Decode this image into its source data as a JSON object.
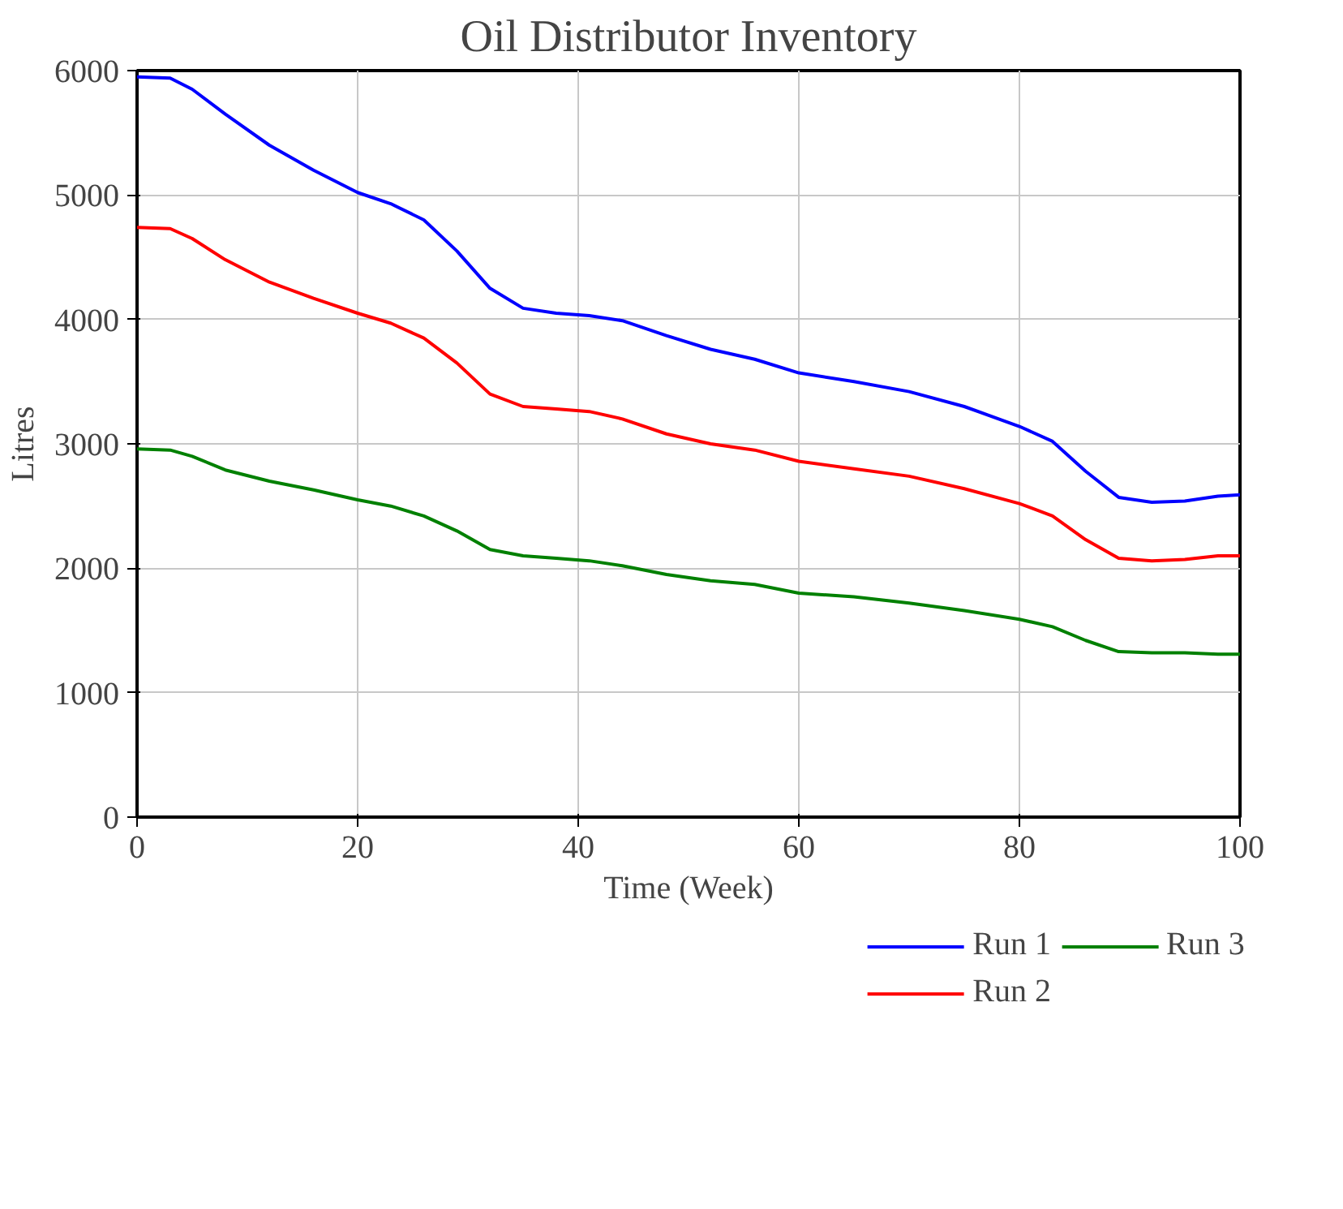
{
  "chart_data": {
    "type": "line",
    "title": "Oil Distributor Inventory",
    "xlabel": "Time (Week)",
    "ylabel": "Litres",
    "x": [
      0,
      3,
      5,
      8,
      12,
      16,
      20,
      23,
      26,
      29,
      32,
      35,
      38,
      41,
      44,
      48,
      52,
      56,
      60,
      65,
      70,
      75,
      80,
      83,
      86,
      89,
      92,
      95,
      98,
      100
    ],
    "series": [
      {
        "name": "Run 1",
        "color": "#0000ff",
        "values": [
          5950,
          5940,
          5850,
          5650,
          5400,
          5200,
          5020,
          4930,
          4800,
          4550,
          4250,
          4090,
          4050,
          4030,
          3990,
          3870,
          3760,
          3680,
          3570,
          3500,
          3420,
          3300,
          3140,
          3020,
          2780,
          2570,
          2530,
          2540,
          2580,
          2590
        ]
      },
      {
        "name": "Run 2",
        "color": "#ff0000",
        "values": [
          4740,
          4730,
          4650,
          4480,
          4300,
          4170,
          4050,
          3970,
          3850,
          3650,
          3400,
          3300,
          3280,
          3260,
          3200,
          3080,
          3000,
          2950,
          2860,
          2800,
          2740,
          2640,
          2520,
          2420,
          2230,
          2080,
          2060,
          2070,
          2100,
          2100
        ]
      },
      {
        "name": "Run 3",
        "color": "#008000",
        "values": [
          2960,
          2950,
          2900,
          2790,
          2700,
          2630,
          2550,
          2500,
          2420,
          2300,
          2150,
          2100,
          2080,
          2060,
          2020,
          1950,
          1900,
          1870,
          1800,
          1770,
          1720,
          1660,
          1590,
          1530,
          1420,
          1330,
          1320,
          1320,
          1310,
          1310
        ]
      }
    ],
    "xlim": [
      0,
      100
    ],
    "xticks": [
      0,
      20,
      40,
      60,
      80,
      100
    ],
    "ylim": [
      0,
      6000
    ],
    "yticks": [
      0,
      1000,
      2000,
      3000,
      4000,
      5000,
      6000
    ],
    "grid": true,
    "legend": "bottom",
    "marker": "none",
    "line_style": "solid"
  }
}
